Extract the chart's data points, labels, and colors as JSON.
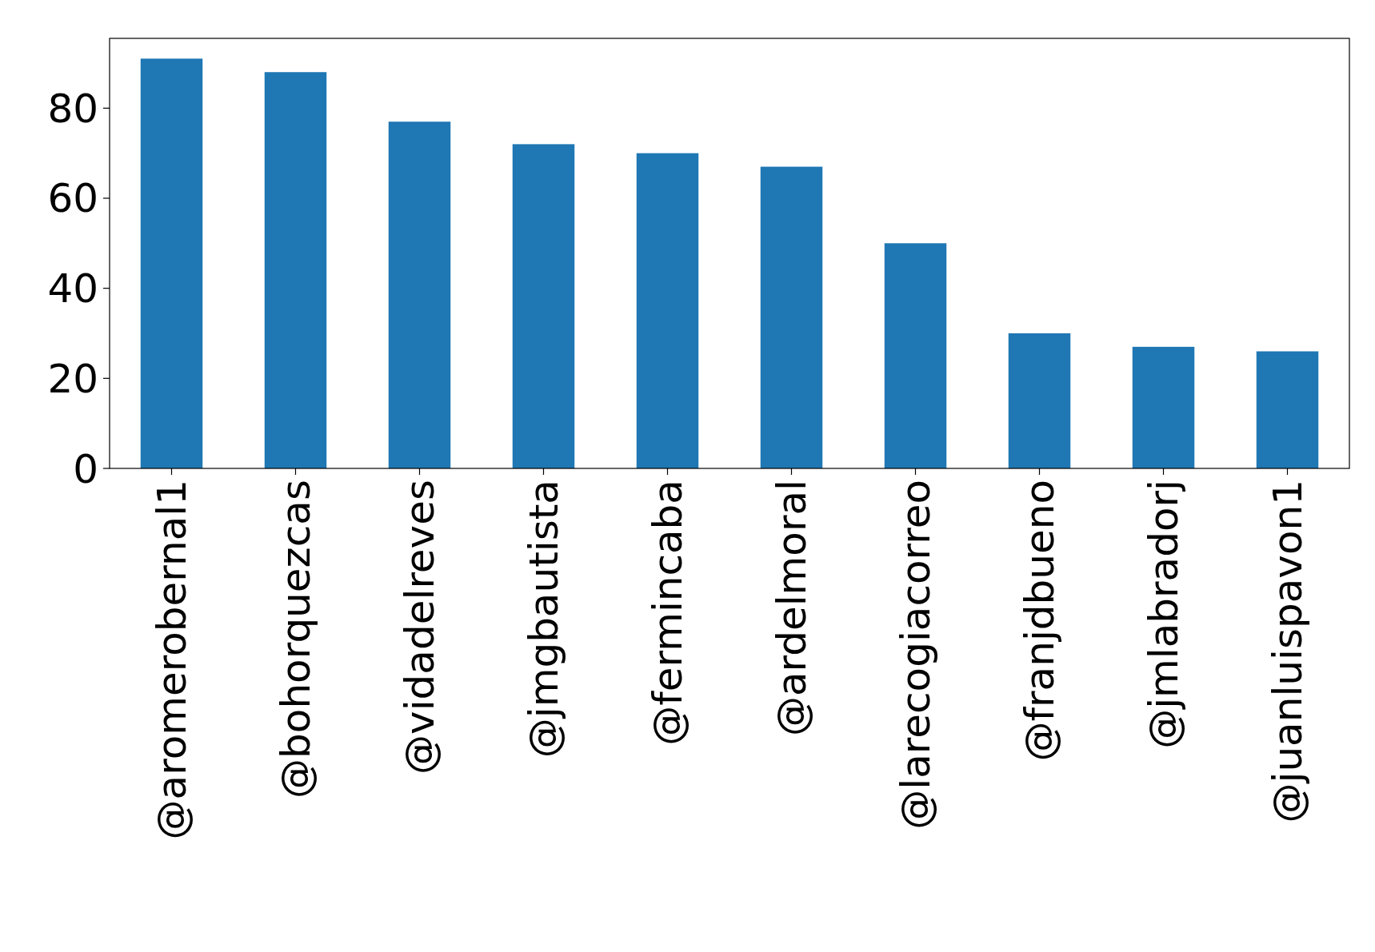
{
  "chart_data": {
    "type": "bar",
    "categories": [
      "@aromerobernal1",
      "@bohorquezcas",
      "@vidadelreves",
      "@jmgbautista",
      "@fermincaba",
      "@ardelmoral",
      "@larecogiacorreo",
      "@franjdbueno",
      "@jmlabradorj",
      "@juanluispavon1"
    ],
    "values": [
      91,
      88,
      77,
      72,
      70,
      67,
      50,
      30,
      27,
      26
    ],
    "color": "#1f77b4",
    "ylim": [
      0,
      95.5
    ],
    "yticks": [
      0,
      20,
      40,
      60,
      80
    ],
    "grid": false
  }
}
